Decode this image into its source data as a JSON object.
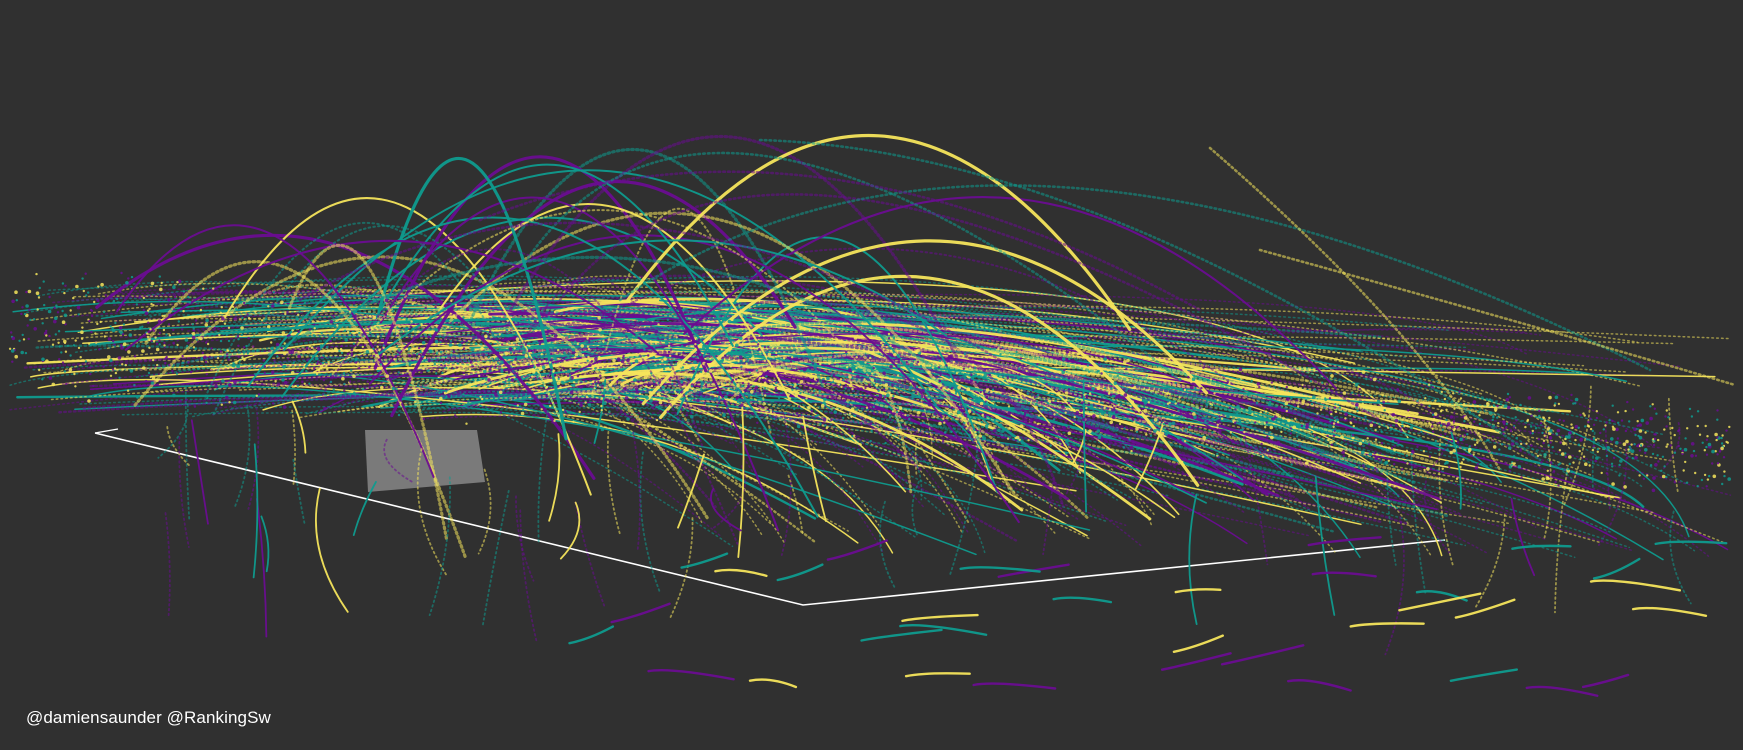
{
  "credit": "@damiensaunder @RankingSw",
  "colors": {
    "background": "#303030",
    "series": [
      "#6a0d91",
      "#0f9b8e",
      "#f5e55c"
    ],
    "outline": "#ffffff"
  }
}
